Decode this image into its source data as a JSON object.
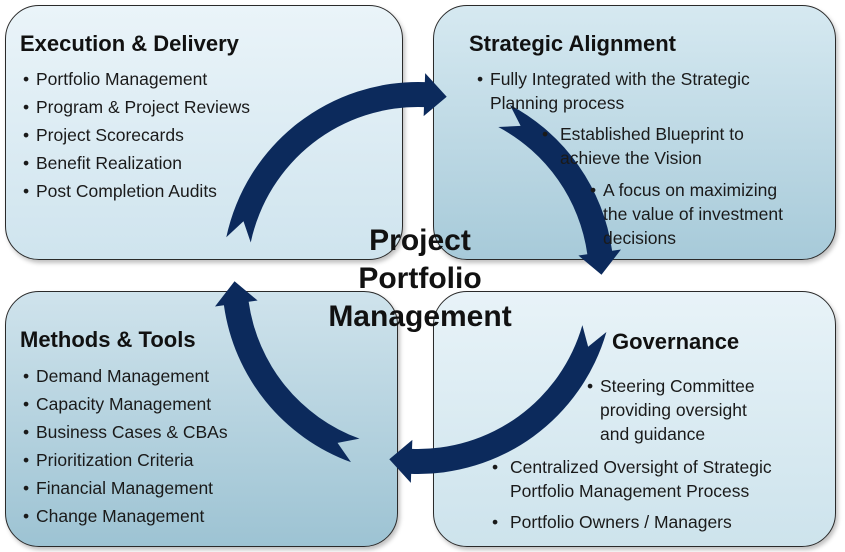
{
  "center": {
    "line1": "Project",
    "line2": "Portfolio",
    "line3": "Management"
  },
  "execution_delivery": {
    "title": "Execution & Delivery",
    "items": [
      "Portfolio Management",
      "Program & Project Reviews",
      "Project Scorecards",
      "Benefit Realization",
      "Post Completion Audits"
    ]
  },
  "strategic_alignment": {
    "title": "Strategic Alignment",
    "items": [
      [
        "Fully Integrated with the Strategic",
        "Planning process"
      ],
      [
        "Established Blueprint to",
        "achieve the Vision"
      ],
      [
        "A focus on maximizing",
        "the value of investment",
        "decisions"
      ]
    ]
  },
  "methods_tools": {
    "title": "Methods & Tools",
    "items": [
      "Demand Management",
      "Capacity Management",
      "Business Cases & CBAs",
      "Prioritization Criteria",
      "Financial Management",
      "Change Management"
    ]
  },
  "governance": {
    "title": "Governance",
    "items": [
      [
        "Steering Committee",
        "providing oversight",
        "and guidance"
      ],
      [
        "Centralized Oversight of Strategic",
        "Portfolio Management Process"
      ],
      [
        "Portfolio Owners / Managers"
      ]
    ]
  },
  "colors": {
    "ring": "#0c2a5c",
    "panel_light": "#eaf4f9",
    "panel_dark": "#9dc3d3",
    "border": "#2a2a2a"
  }
}
